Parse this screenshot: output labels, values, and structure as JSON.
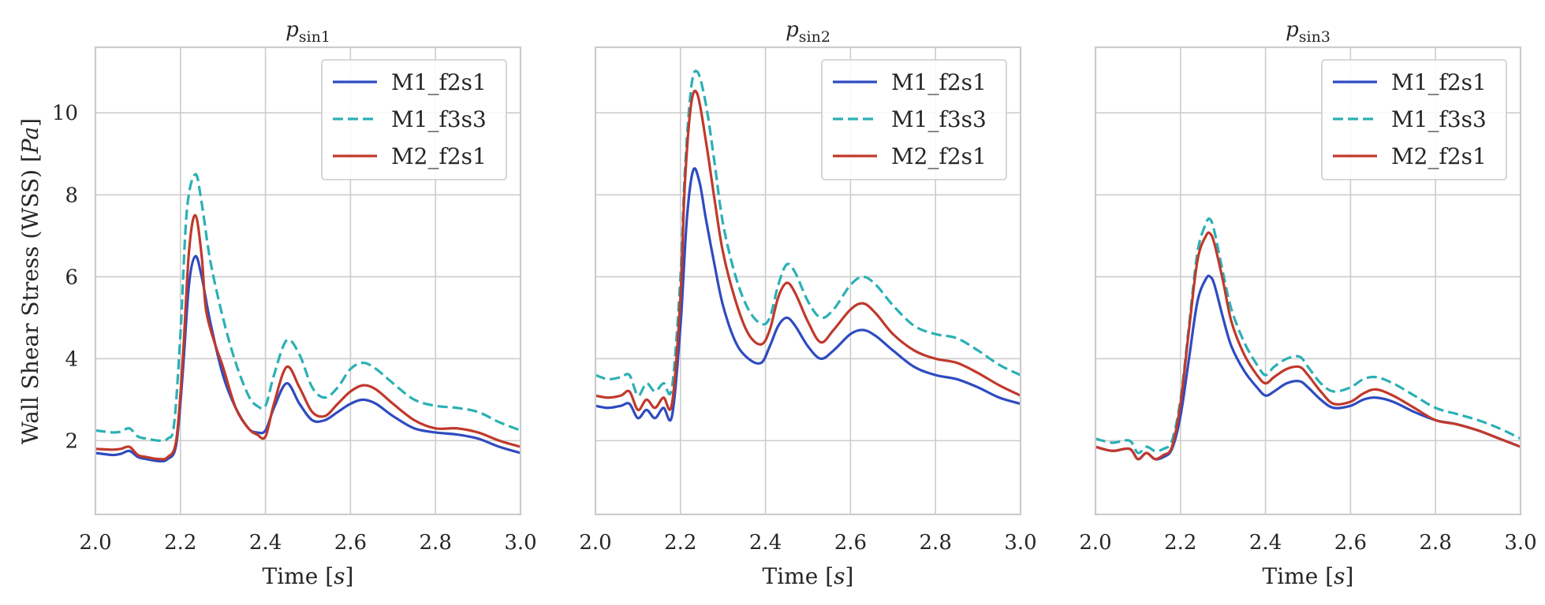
{
  "figure": {
    "ylabel_main": "Wall Shear Stress (WSS) [",
    "ylabel_var": "Pa",
    "ylabel_close": "]",
    "xlabel_main": "Time [",
    "xlabel_var": "s",
    "xlabel_close": "]"
  },
  "colors": {
    "M1_f2s1": "#2f4bc0",
    "M1_f3s3": "#2ab0b5",
    "M2_f2s1": "#c0392b",
    "grid": "#cccccc",
    "spine": "#cccccc"
  },
  "chart_data": [
    {
      "type": "line",
      "title_base": "p",
      "title_sub": "sin1",
      "xlim": [
        2.0,
        3.0
      ],
      "ylim": [
        0.2,
        11.6
      ],
      "xticks": [
        2.0,
        2.2,
        2.4,
        2.6,
        2.8,
        3.0
      ],
      "yticks": [
        2,
        4,
        6,
        8,
        10
      ],
      "grid": true,
      "legend_position": "top-right",
      "series": [
        {
          "name": "M1_f2s1",
          "style": "solid",
          "x": [
            2.0,
            2.04,
            2.06,
            2.08,
            2.1,
            2.12,
            2.15,
            2.17,
            2.19,
            2.205,
            2.22,
            2.235,
            2.25,
            2.27,
            2.3,
            2.33,
            2.36,
            2.38,
            2.4,
            2.42,
            2.45,
            2.48,
            2.51,
            2.54,
            2.57,
            2.6,
            2.63,
            2.66,
            2.7,
            2.75,
            2.8,
            2.85,
            2.9,
            2.95,
            3.0
          ],
          "y": [
            1.7,
            1.65,
            1.68,
            1.75,
            1.6,
            1.55,
            1.5,
            1.55,
            1.9,
            3.6,
            5.8,
            6.5,
            6.0,
            4.9,
            3.6,
            2.8,
            2.3,
            2.2,
            2.25,
            2.8,
            3.4,
            2.9,
            2.5,
            2.5,
            2.7,
            2.9,
            3.0,
            2.9,
            2.6,
            2.3,
            2.2,
            2.15,
            2.05,
            1.85,
            1.7
          ]
        },
        {
          "name": "M1_f3s3",
          "style": "dashed",
          "x": [
            2.0,
            2.04,
            2.06,
            2.08,
            2.1,
            2.12,
            2.15,
            2.17,
            2.185,
            2.2,
            2.215,
            2.235,
            2.25,
            2.27,
            2.3,
            2.33,
            2.36,
            2.38,
            2.4,
            2.42,
            2.45,
            2.48,
            2.51,
            2.54,
            2.57,
            2.6,
            2.63,
            2.66,
            2.7,
            2.75,
            2.8,
            2.85,
            2.9,
            2.95,
            3.0
          ],
          "y": [
            2.25,
            2.2,
            2.22,
            2.3,
            2.1,
            2.05,
            2.0,
            2.05,
            2.4,
            4.6,
            7.6,
            8.5,
            7.8,
            6.4,
            5.0,
            3.9,
            3.1,
            2.85,
            2.85,
            3.6,
            4.45,
            4.1,
            3.3,
            3.05,
            3.3,
            3.75,
            3.9,
            3.75,
            3.4,
            3.0,
            2.85,
            2.8,
            2.7,
            2.45,
            2.25
          ]
        },
        {
          "name": "M2_f2s1",
          "style": "solid",
          "x": [
            2.0,
            2.04,
            2.06,
            2.08,
            2.1,
            2.12,
            2.15,
            2.17,
            2.19,
            2.205,
            2.22,
            2.235,
            2.25,
            2.26,
            2.28,
            2.3,
            2.33,
            2.36,
            2.38,
            2.4,
            2.42,
            2.45,
            2.48,
            2.51,
            2.54,
            2.57,
            2.6,
            2.63,
            2.66,
            2.7,
            2.75,
            2.8,
            2.85,
            2.9,
            2.95,
            3.0
          ],
          "y": [
            1.8,
            1.78,
            1.8,
            1.85,
            1.65,
            1.6,
            1.55,
            1.6,
            2.0,
            3.9,
            6.6,
            7.5,
            6.5,
            5.2,
            4.4,
            3.8,
            2.8,
            2.3,
            2.15,
            2.1,
            2.9,
            3.8,
            3.3,
            2.7,
            2.6,
            2.9,
            3.2,
            3.35,
            3.25,
            2.9,
            2.5,
            2.3,
            2.3,
            2.2,
            2.0,
            1.85
          ]
        }
      ]
    },
    {
      "type": "line",
      "title_base": "p",
      "title_sub": "sin2",
      "xlim": [
        2.0,
        3.0
      ],
      "ylim": [
        0.2,
        11.6
      ],
      "xticks": [
        2.0,
        2.2,
        2.4,
        2.6,
        2.8,
        3.0
      ],
      "yticks": [
        2,
        4,
        6,
        8,
        10
      ],
      "grid": true,
      "legend_position": "top-right",
      "series": [
        {
          "name": "M1_f2s1",
          "style": "solid",
          "x": [
            2.0,
            2.03,
            2.06,
            2.08,
            2.1,
            2.12,
            2.14,
            2.16,
            2.18,
            2.2,
            2.215,
            2.23,
            2.245,
            2.26,
            2.28,
            2.3,
            2.33,
            2.36,
            2.39,
            2.41,
            2.43,
            2.45,
            2.47,
            2.5,
            2.53,
            2.56,
            2.6,
            2.63,
            2.66,
            2.7,
            2.75,
            2.8,
            2.85,
            2.9,
            2.95,
            3.0
          ],
          "y": [
            2.85,
            2.8,
            2.85,
            2.9,
            2.55,
            2.75,
            2.55,
            2.8,
            2.6,
            4.8,
            7.4,
            8.6,
            8.3,
            7.4,
            6.3,
            5.3,
            4.4,
            4.0,
            3.9,
            4.3,
            4.8,
            5.0,
            4.8,
            4.3,
            4.0,
            4.2,
            4.6,
            4.7,
            4.55,
            4.2,
            3.8,
            3.6,
            3.5,
            3.3,
            3.05,
            2.9
          ]
        },
        {
          "name": "M1_f3s3",
          "style": "dashed",
          "x": [
            2.0,
            2.03,
            2.06,
            2.08,
            2.1,
            2.12,
            2.14,
            2.16,
            2.18,
            2.2,
            2.21,
            2.225,
            2.24,
            2.26,
            2.28,
            2.3,
            2.33,
            2.36,
            2.39,
            2.41,
            2.43,
            2.45,
            2.47,
            2.5,
            2.53,
            2.56,
            2.6,
            2.63,
            2.66,
            2.7,
            2.75,
            2.8,
            2.85,
            2.9,
            2.95,
            3.0
          ],
          "y": [
            3.6,
            3.5,
            3.55,
            3.6,
            3.1,
            3.4,
            3.2,
            3.4,
            3.3,
            6.0,
            8.5,
            10.6,
            11.0,
            10.2,
            8.8,
            7.3,
            6.0,
            5.2,
            4.85,
            5.0,
            5.8,
            6.3,
            6.1,
            5.4,
            5.0,
            5.2,
            5.8,
            6.0,
            5.8,
            5.3,
            4.8,
            4.6,
            4.5,
            4.2,
            3.85,
            3.6
          ]
        },
        {
          "name": "M2_f2s1",
          "style": "solid",
          "x": [
            2.0,
            2.03,
            2.06,
            2.08,
            2.1,
            2.12,
            2.14,
            2.16,
            2.18,
            2.2,
            2.21,
            2.225,
            2.24,
            2.26,
            2.28,
            2.3,
            2.33,
            2.36,
            2.39,
            2.41,
            2.43,
            2.45,
            2.47,
            2.5,
            2.53,
            2.56,
            2.6,
            2.63,
            2.66,
            2.7,
            2.75,
            2.8,
            2.85,
            2.9,
            2.95,
            3.0
          ],
          "y": [
            3.1,
            3.05,
            3.1,
            3.2,
            2.75,
            3.0,
            2.8,
            3.05,
            2.9,
            5.5,
            8.2,
            10.2,
            10.45,
            9.3,
            7.9,
            6.6,
            5.4,
            4.6,
            4.35,
            4.7,
            5.5,
            5.85,
            5.6,
            4.9,
            4.4,
            4.7,
            5.2,
            5.35,
            5.1,
            4.6,
            4.2,
            4.0,
            3.9,
            3.65,
            3.35,
            3.1
          ]
        }
      ]
    },
    {
      "type": "line",
      "title_base": "p",
      "title_sub": "sin3",
      "xlim": [
        2.0,
        3.0
      ],
      "ylim": [
        0.2,
        11.6
      ],
      "xticks": [
        2.0,
        2.2,
        2.4,
        2.6,
        2.8,
        3.0
      ],
      "yticks": [
        2,
        4,
        6,
        8,
        10
      ],
      "grid": true,
      "legend_position": "top-right",
      "series": [
        {
          "name": "M1_f2s1",
          "style": "solid",
          "x": [
            2.0,
            2.04,
            2.08,
            2.1,
            2.12,
            2.14,
            2.16,
            2.18,
            2.2,
            2.22,
            2.24,
            2.26,
            2.27,
            2.28,
            2.3,
            2.32,
            2.35,
            2.38,
            2.4,
            2.42,
            2.45,
            2.48,
            2.5,
            2.53,
            2.56,
            2.6,
            2.63,
            2.66,
            2.7,
            2.75,
            2.8,
            2.85,
            2.9,
            2.95,
            3.0
          ],
          "y": [
            1.85,
            1.75,
            1.8,
            1.55,
            1.7,
            1.55,
            1.6,
            1.8,
            2.6,
            4.0,
            5.4,
            5.95,
            6.0,
            5.8,
            5.0,
            4.3,
            3.7,
            3.3,
            3.1,
            3.2,
            3.4,
            3.45,
            3.3,
            3.0,
            2.8,
            2.85,
            3.0,
            3.05,
            2.95,
            2.7,
            2.5,
            2.4,
            2.25,
            2.05,
            1.85
          ]
        },
        {
          "name": "M1_f3s3",
          "style": "dashed",
          "x": [
            2.0,
            2.04,
            2.08,
            2.1,
            2.12,
            2.14,
            2.16,
            2.18,
            2.2,
            2.22,
            2.24,
            2.26,
            2.27,
            2.28,
            2.3,
            2.32,
            2.35,
            2.38,
            2.4,
            2.42,
            2.45,
            2.48,
            2.5,
            2.53,
            2.56,
            2.6,
            2.63,
            2.66,
            2.7,
            2.75,
            2.8,
            2.85,
            2.9,
            2.95,
            3.0
          ],
          "y": [
            2.05,
            1.95,
            2.0,
            1.7,
            1.85,
            1.75,
            1.8,
            2.0,
            3.0,
            4.8,
            6.6,
            7.3,
            7.4,
            7.1,
            6.1,
            5.2,
            4.4,
            3.85,
            3.6,
            3.8,
            4.0,
            4.05,
            3.8,
            3.4,
            3.2,
            3.3,
            3.5,
            3.55,
            3.4,
            3.1,
            2.8,
            2.65,
            2.5,
            2.3,
            2.05
          ]
        },
        {
          "name": "M2_f2s1",
          "style": "solid",
          "x": [
            2.0,
            2.04,
            2.08,
            2.1,
            2.12,
            2.14,
            2.16,
            2.18,
            2.2,
            2.22,
            2.24,
            2.26,
            2.27,
            2.28,
            2.3,
            2.32,
            2.35,
            2.38,
            2.4,
            2.42,
            2.45,
            2.48,
            2.5,
            2.53,
            2.56,
            2.6,
            2.63,
            2.66,
            2.7,
            2.75,
            2.8,
            2.85,
            2.9,
            2.95,
            3.0
          ],
          "y": [
            1.85,
            1.75,
            1.8,
            1.55,
            1.7,
            1.55,
            1.65,
            1.85,
            2.9,
            4.7,
            6.4,
            7.0,
            7.05,
            6.8,
            5.9,
            4.9,
            4.1,
            3.6,
            3.4,
            3.55,
            3.75,
            3.8,
            3.6,
            3.2,
            2.9,
            2.95,
            3.15,
            3.25,
            3.1,
            2.8,
            2.5,
            2.4,
            2.25,
            2.05,
            1.85
          ]
        }
      ]
    }
  ]
}
